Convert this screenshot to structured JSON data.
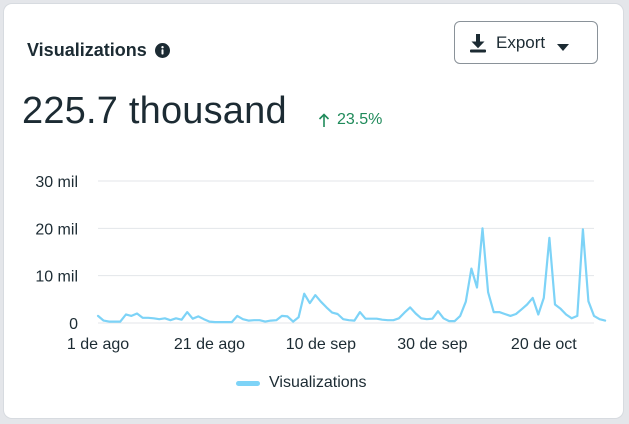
{
  "card": {
    "title": "Visualizations",
    "export_label": "Export",
    "total": "225.7 thousand",
    "delta": "23.5%"
  },
  "colors": {
    "line": "#7dd3f7",
    "grid": "#e3e6ea",
    "positive": "#1f8a5a",
    "text": "#1c2b33"
  },
  "icons": [
    "info-icon",
    "download-icon",
    "caret-down-icon",
    "arrow-up-icon"
  ],
  "chart_data": {
    "type": "line",
    "title": "",
    "xlabel": "",
    "ylabel": "",
    "ylim": [
      0,
      30000
    ],
    "y_ticks": [
      {
        "value": 0,
        "label": "0"
      },
      {
        "value": 10000,
        "label": "10 mil"
      },
      {
        "value": 20000,
        "label": "20 mil"
      },
      {
        "value": 30000,
        "label": "30 mil"
      }
    ],
    "x_ticks": [
      {
        "day": 0,
        "label": "1 de ago"
      },
      {
        "day": 20,
        "label": "21 de ago"
      },
      {
        "day": 40,
        "label": "10 de sep"
      },
      {
        "day": 60,
        "label": "30 de sep"
      },
      {
        "day": 80,
        "label": "20 de oct"
      }
    ],
    "xlim": [
      0,
      89
    ],
    "legend": "bottom",
    "series": [
      {
        "name": "Visualizations",
        "values": [
          1500,
          500,
          300,
          300,
          300,
          1800,
          1500,
          2000,
          1100,
          1100,
          1000,
          800,
          1000,
          600,
          1000,
          700,
          2300,
          900,
          1400,
          800,
          300,
          200,
          200,
          200,
          200,
          1500,
          800,
          500,
          600,
          600,
          300,
          500,
          600,
          1500,
          1400,
          300,
          1200,
          6200,
          4200,
          5900,
          4500,
          3300,
          2200,
          1900,
          800,
          600,
          500,
          2300,
          900,
          900,
          900,
          700,
          600,
          600,
          1000,
          2200,
          3300,
          2000,
          1000,
          800,
          900,
          2500,
          1000,
          400,
          400,
          1500,
          4500,
          11500,
          7500,
          20000,
          6500,
          2300,
          2300,
          1900,
          1500,
          1900,
          2900,
          3900,
          5300,
          1800,
          5300,
          18000,
          3900,
          3000,
          1800,
          1000,
          1500,
          19800,
          4600,
          1500,
          800,
          500
        ]
      }
    ]
  },
  "legend": {
    "label": "Visualizations"
  }
}
